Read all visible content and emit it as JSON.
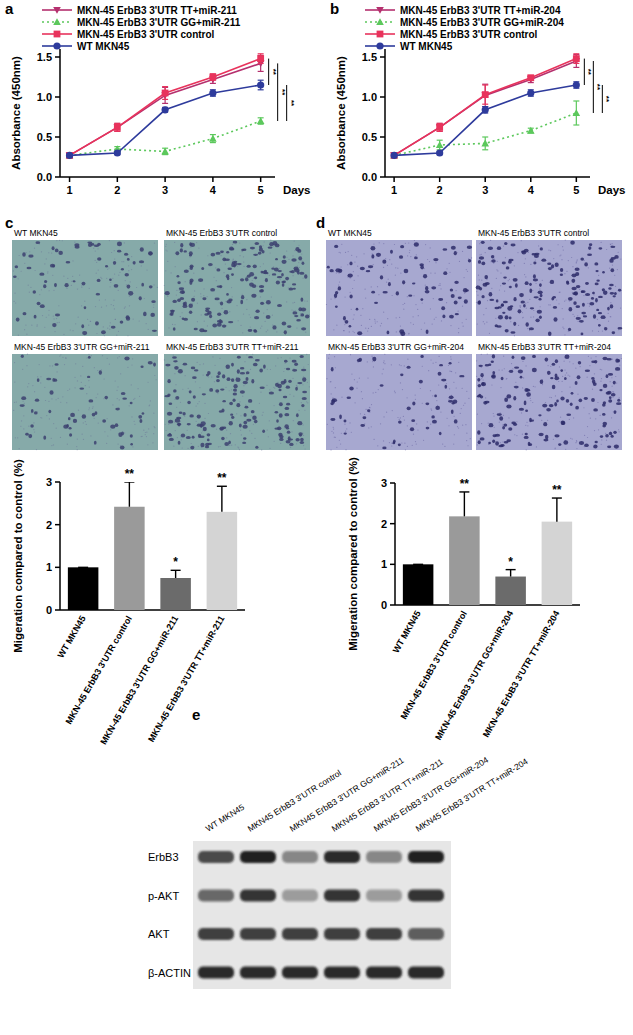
{
  "panel_labels": [
    "a",
    "b",
    "c",
    "d",
    "e"
  ],
  "chart_data": [
    {
      "type": "line",
      "y_label": "Absorbance (450nm)",
      "x_label": "Days",
      "x": [
        1,
        2,
        3,
        4,
        5
      ],
      "xlim": [
        0.8,
        5.3
      ],
      "xticks": [
        1,
        2,
        3,
        4,
        5
      ],
      "ylim": [
        0,
        1.6
      ],
      "yticks": [
        {
          "value": 0,
          "label": "0.0"
        },
        {
          "value": 0.5,
          "label": "0.5"
        },
        {
          "value": 1,
          "label": "1.0"
        },
        {
          "value": 1.5,
          "label": "1.5"
        }
      ],
      "annotations": [
        "**",
        "**",
        "**"
      ],
      "series": [
        {
          "name": "MKN-45 ErbB3 3'UTR TT+miR-211",
          "color": "#b5306e",
          "marker": "triangle-down",
          "line_style": "solid",
          "values": [
            0.27,
            0.62,
            1.02,
            1.22,
            1.42
          ],
          "errors": [
            0.02,
            0.05,
            0.1,
            0.05,
            0.1
          ]
        },
        {
          "name": "MKN-45 ErbB3 3'UTR GG+miR-211",
          "color": "#5cc85c",
          "marker": "triangle-up",
          "line_style": "dotted",
          "values": [
            0.27,
            0.35,
            0.32,
            0.48,
            0.7
          ],
          "errors": [
            0.02,
            0.03,
            0.04,
            0.05,
            0.04
          ]
        },
        {
          "name": "MKN-45 ErbB3 3'UTR control",
          "color": "#e8335c",
          "marker": "square",
          "line_style": "solid",
          "values": [
            0.27,
            0.62,
            1.05,
            1.25,
            1.48
          ],
          "errors": [
            0.02,
            0.05,
            0.08,
            0.04,
            0.06
          ]
        },
        {
          "name": "WT MKN45",
          "color": "#2e3b9c",
          "marker": "circle",
          "line_style": "solid",
          "values": [
            0.27,
            0.3,
            0.84,
            1.05,
            1.15
          ],
          "errors": [
            0.02,
            0.02,
            0.03,
            0.04,
            0.06
          ]
        }
      ]
    },
    {
      "type": "line",
      "y_label": "Absorbance (450nm)",
      "x_label": "Days",
      "x": [
        1,
        2,
        3,
        4,
        5
      ],
      "xlim": [
        0.8,
        5.3
      ],
      "xticks": [
        1,
        2,
        3,
        4,
        5
      ],
      "ylim": [
        0,
        1.6
      ],
      "yticks": [
        {
          "value": 0,
          "label": "0.0"
        },
        {
          "value": 0.5,
          "label": "0.5"
        },
        {
          "value": 1,
          "label": "1.0"
        },
        {
          "value": 1.5,
          "label": "1.5"
        }
      ],
      "annotations": [
        "**",
        "**",
        "**"
      ],
      "series": [
        {
          "name": "MKN-45 ErbB3 3'UTR TT+miR-204",
          "color": "#b5306e",
          "marker": "triangle-down",
          "line_style": "solid",
          "values": [
            0.27,
            0.62,
            1.02,
            1.22,
            1.45
          ],
          "errors": [
            0.02,
            0.05,
            0.14,
            0.04,
            0.08
          ]
        },
        {
          "name": "MKN-45 ErbB3 3'UTR GG+miR-204",
          "color": "#5cc85c",
          "marker": "triangle-up",
          "line_style": "dotted",
          "values": [
            0.27,
            0.4,
            0.42,
            0.58,
            0.8
          ],
          "errors": [
            0.02,
            0.06,
            0.08,
            0.03,
            0.15
          ]
        },
        {
          "name": "MKN-45 ErbB3 3'UTR control",
          "color": "#e8335c",
          "marker": "square",
          "line_style": "solid",
          "values": [
            0.27,
            0.62,
            1.03,
            1.24,
            1.48
          ],
          "errors": [
            0.02,
            0.05,
            0.12,
            0.03,
            0.06
          ]
        },
        {
          "name": "WT MKN45",
          "color": "#2e3b9c",
          "marker": "circle",
          "line_style": "solid",
          "values": [
            0.27,
            0.3,
            0.84,
            1.05,
            1.15
          ],
          "errors": [
            0.02,
            0.02,
            0.04,
            0.04,
            0.04
          ]
        }
      ]
    },
    {
      "type": "bar",
      "y_label": "Migeration compared to control (%)",
      "categories": [
        "WT MKN45",
        "MKN-45 ErbB3 3'UTR control",
        "MKN-45 ErbB3 3'UTR GG+miR-211",
        "MKN-45 ErbB3 3'UTR TT+miR-211"
      ],
      "values": [
        1,
        2.42,
        0.75,
        2.3
      ],
      "errors": [
        0,
        0.58,
        0.18,
        0.6
      ],
      "colors": [
        "#000000",
        "#9a9a9a",
        "#6b6b6b",
        "#d4d4d4"
      ],
      "ylim": [
        0,
        3
      ],
      "yticks": [
        0,
        1,
        2,
        3
      ],
      "significance": [
        null,
        "**",
        "*",
        "**"
      ]
    },
    {
      "type": "bar",
      "y_label": "Migeration compared to control (%)",
      "categories": [
        "WT MKN45",
        "MKN-45 ErbB3 3'UTR control",
        "MKN-45 ErbB3 3'UTR GG+miR-204",
        "MKN-45 ErbB3 3'UTR TT+miR-204"
      ],
      "values": [
        1,
        2.18,
        0.7,
        2.05
      ],
      "errors": [
        0,
        0.6,
        0.17,
        0.58
      ],
      "colors": [
        "#000000",
        "#9a9a9a",
        "#6b6b6b",
        "#d4d4d4"
      ],
      "ylim": [
        0,
        3
      ],
      "yticks": [
        0,
        1,
        2,
        3
      ],
      "significance": [
        null,
        "**",
        "*",
        "**"
      ]
    }
  ],
  "images": [
    {
      "labels": [
        "WT MKN45",
        "MKN-45 ErbB3 3'UTR control",
        "MKN-45 ErbB3 3'UTR GG+miR-211",
        "MKN-45 ErbB3 3'UTR TT+miR-211"
      ]
    },
    {
      "labels": [
        "WT MKN45",
        "MKN-45 ErbB3 3'UTR control",
        "MKN-45 ErbB3 3'UTR GG+miR-204",
        "MKN-45 ErbB3 3'UTR TT+miR-204"
      ]
    }
  ],
  "blot": {
    "lanes": [
      "WT MKN45",
      "MKN45 ErbB3 3'UTR control",
      "MKN45 ErbB3 3'UTR GG+miR-211",
      "MKN45 ErbB3 3'UTR TT+miR-211",
      "MKN45 ErbB3 3'UTR GG+miR-204",
      "MKN45 ErbB3 3'UTR TT+miR-204"
    ],
    "rows": [
      {
        "label": "ErbB3",
        "intensity": [
          0.75,
          0.95,
          0.45,
          0.9,
          0.45,
          0.95
        ]
      },
      {
        "label": "p-AKT",
        "intensity": [
          0.6,
          0.85,
          0.35,
          0.85,
          0.35,
          0.85
        ]
      },
      {
        "label": "AKT",
        "intensity": [
          0.8,
          0.8,
          0.8,
          0.8,
          0.8,
          0.65
        ]
      },
      {
        "label": "β-ACTIN",
        "intensity": [
          0.9,
          0.9,
          0.9,
          0.9,
          0.9,
          0.9
        ]
      }
    ]
  }
}
